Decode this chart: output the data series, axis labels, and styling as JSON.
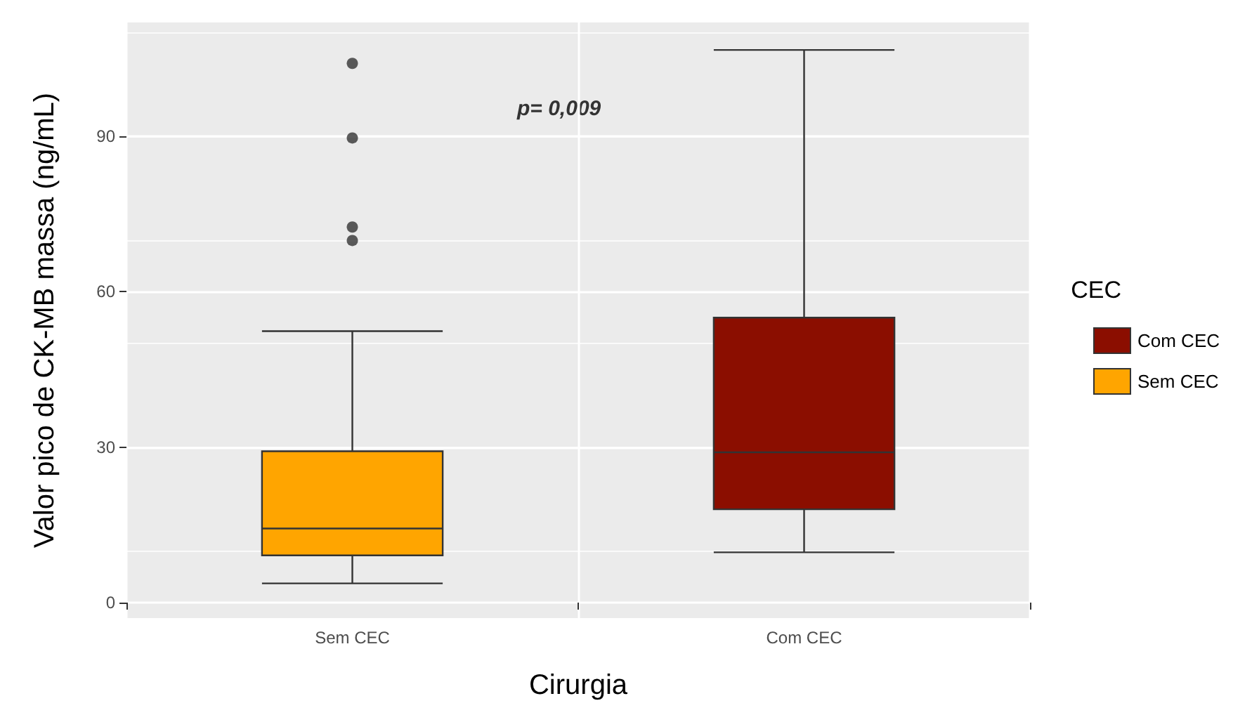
{
  "chart_data": {
    "type": "box",
    "xlabel": "Cirurgia",
    "ylabel": "Valor pico de CK-MB massa (ng/mL)",
    "legend_title": "CEC",
    "categories": [
      "Sem CEC",
      "Com CEC"
    ],
    "series": [
      {
        "name": "Com CEC",
        "color": "#8b0e00",
        "boxes": [
          null,
          {
            "low": 9.7,
            "q1": 18,
            "median": 29,
            "q3": 55,
            "high": 106.7
          }
        ]
      },
      {
        "name": "Sem CEC",
        "color": "#ffa500",
        "boxes": [
          {
            "low": 3.7,
            "q1": 9.1,
            "median": 14.3,
            "q3": 29.2,
            "high": 52.4,
            "outliers": [
              104.1,
              89.7,
              72.5,
              69.9
            ]
          },
          null
        ]
      }
    ],
    "annotations": [
      "p= 0,009"
    ],
    "ylim": [
      -3,
      112
    ],
    "yticks": [
      0,
      30,
      60,
      90
    ],
    "grid": true,
    "legend": "right"
  }
}
